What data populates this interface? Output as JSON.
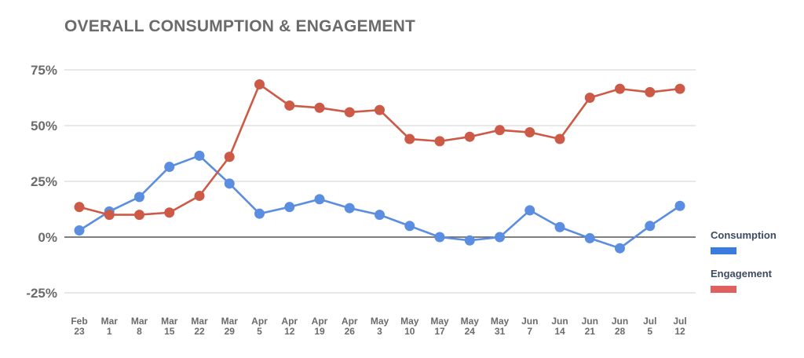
{
  "chart_data": {
    "type": "line",
    "title": "OVERALL CONSUMPTION & ENGAGEMENT",
    "xlabel": "",
    "ylabel": "",
    "ylim": [
      -25,
      75
    ],
    "yticks": [
      {
        "value": 75,
        "label": "75%"
      },
      {
        "value": 50,
        "label": "50%"
      },
      {
        "value": 25,
        "label": "25%"
      },
      {
        "value": 0,
        "label": "0%"
      },
      {
        "value": -25,
        "label": "-25%"
      }
    ],
    "categories": [
      [
        "Feb",
        "23"
      ],
      [
        "Mar",
        "1"
      ],
      [
        "Mar",
        "8"
      ],
      [
        "Mar",
        "15"
      ],
      [
        "Mar",
        "22"
      ],
      [
        "Mar",
        "29"
      ],
      [
        "Apr",
        "5"
      ],
      [
        "Apr",
        "12"
      ],
      [
        "Apr",
        "19"
      ],
      [
        "Apr",
        "26"
      ],
      [
        "May",
        "3"
      ],
      [
        "May",
        "10"
      ],
      [
        "May",
        "17"
      ],
      [
        "May",
        "24"
      ],
      [
        "May",
        "31"
      ],
      [
        "Jun",
        "7"
      ],
      [
        "Jun",
        "14"
      ],
      [
        "Jun",
        "21"
      ],
      [
        "Jun",
        "28"
      ],
      [
        "Jul",
        "5"
      ],
      [
        "Jul",
        "12"
      ]
    ],
    "series": [
      {
        "name": "Consumption",
        "color": "#5b8ee0",
        "legend_color": "#3a7be0",
        "values": [
          3,
          11.5,
          18,
          31.5,
          36.5,
          24,
          10.5,
          13.5,
          17,
          13,
          10,
          5,
          0,
          -1.5,
          0,
          12,
          4.5,
          -0.5,
          -5,
          5,
          14
        ]
      },
      {
        "name": "Engagement",
        "color": "#cc5a47",
        "legend_color": "#e06060",
        "values": [
          13.5,
          10,
          10,
          11,
          18.5,
          36,
          68.5,
          59,
          58,
          56,
          57,
          44,
          43,
          45,
          48,
          47,
          44,
          62.5,
          66.5,
          65,
          66.5
        ]
      }
    ]
  }
}
